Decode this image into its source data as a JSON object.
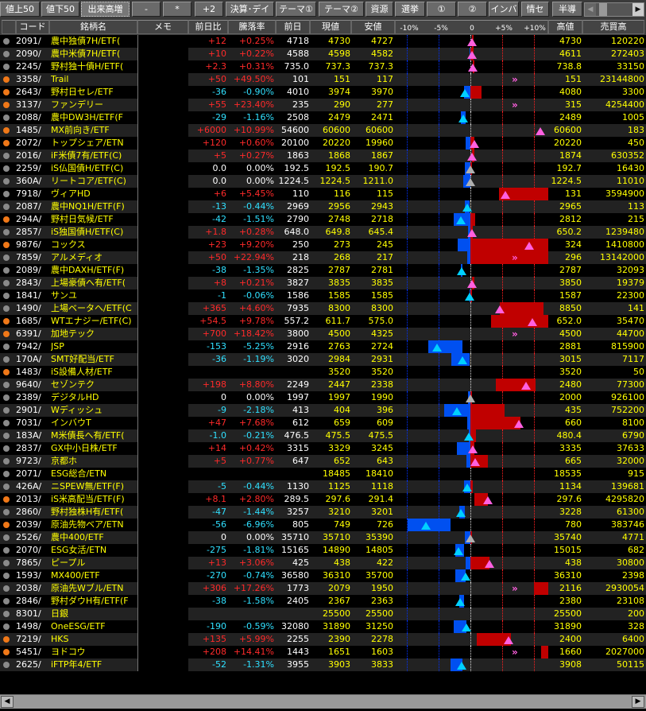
{
  "toolbar": {
    "buttons": [
      "値上50",
      "値下50",
      "出来高増",
      "-",
      "*",
      "+2",
      "決算･デイ",
      "テーマ①",
      "テーマ②",
      "資源",
      "選挙",
      "①",
      "②",
      "インバ",
      "情セ",
      "半導"
    ],
    "active": "出来高増"
  },
  "header": {
    "code": "コード",
    "name": "銘柄名",
    "memo": "メモ",
    "change": "前日比",
    "pct": "騰落率",
    "prev": "前日",
    "current": "現値",
    "low": "安値",
    "high": "高値",
    "volume": "売買高",
    "axis": [
      "-10%",
      "-5%",
      "0",
      "+5%",
      "+10%"
    ]
  },
  "colors": {
    "up_bar": "#c00000",
    "down_bar": "#0050f0",
    "up_marker": "#ff60e0",
    "down_marker": "#00d0ff",
    "flat_marker": "#b0b0b0",
    "dot_orange": "#f07818",
    "dot_gray": "#8a8a8a"
  },
  "rows": [
    {
      "code": "2091/",
      "name": "農中独債7H/ETF(",
      "change": "+12",
      "pct": "+0.25%",
      "prev": "4718",
      "current": "4730",
      "low": "4727",
      "high": "4730",
      "volume": "120220",
      "dot": "gray"
    },
    {
      "code": "2090/",
      "name": "農中米債7H/ETF(",
      "change": "+10",
      "pct": "+0.22%",
      "prev": "4588",
      "current": "4598",
      "low": "4582",
      "high": "4611",
      "volume": "272403",
      "dot": "gray"
    },
    {
      "code": "2245/",
      "name": "野村独十債H/ETF(",
      "change": "+2.3",
      "pct": "+0.31%",
      "prev": "735.0",
      "current": "737.3",
      "low": "737.3",
      "high": "738.8",
      "volume": "33150",
      "dot": "gray"
    },
    {
      "code": "3358/",
      "name": "Trail",
      "change": "+50",
      "pct": "+49.50%",
      "prev": "101",
      "current": "151",
      "low": "117",
      "high": "151",
      "volume": "23144800",
      "dot": "orange"
    },
    {
      "code": "2643/",
      "name": "野村日セレ/ETF",
      "change": "-36",
      "pct": "-0.90%",
      "prev": "4010",
      "current": "3974",
      "low": "3970",
      "high": "4080",
      "volume": "3300",
      "dot": "orange"
    },
    {
      "code": "3137/",
      "name": "ファンデリー",
      "change": "+55",
      "pct": "+23.40%",
      "prev": "235",
      "current": "290",
      "low": "277",
      "high": "315",
      "volume": "4254400",
      "dot": "orange"
    },
    {
      "code": "2088/",
      "name": "農中DW3H/ETF(F",
      "change": "-29",
      "pct": "-1.16%",
      "prev": "2508",
      "current": "2479",
      "low": "2471",
      "high": "2489",
      "volume": "1005",
      "dot": "gray"
    },
    {
      "code": "1485/",
      "name": "MX前向き/ETF",
      "change": "+6000",
      "pct": "+10.99%",
      "prev": "54600",
      "current": "60600",
      "low": "60600",
      "high": "60600",
      "volume": "183",
      "dot": "orange"
    },
    {
      "code": "2072/",
      "name": "トップシェア/ETN",
      "change": "+120",
      "pct": "+0.60%",
      "prev": "20100",
      "current": "20220",
      "low": "19960",
      "high": "20220",
      "volume": "450",
      "dot": "orange"
    },
    {
      "code": "2016/",
      "name": "iF米債7有/ETF(C)",
      "change": "+5",
      "pct": "+0.27%",
      "prev": "1863",
      "current": "1868",
      "low": "1867",
      "high": "1874",
      "volume": "630352",
      "dot": "gray"
    },
    {
      "code": "2259/",
      "name": "iS仏国債H/ETF(C)",
      "change": "0.0",
      "pct": "0.00%",
      "prev": "192.5",
      "current": "192.5",
      "low": "190.7",
      "high": "192.7",
      "volume": "16430",
      "dot": "gray"
    },
    {
      "code": "360A/",
      "name": "リートコア/ETF(C)",
      "change": "0.0",
      "pct": "0.00%",
      "prev": "1224.5",
      "current": "1224.5",
      "low": "1211.0",
      "high": "1224.5",
      "volume": "11010",
      "dot": "gray"
    },
    {
      "code": "7918/",
      "name": "ヴィアHD",
      "change": "+6",
      "pct": "+5.45%",
      "prev": "110",
      "current": "116",
      "low": "115",
      "high": "131",
      "volume": "3594900",
      "dot": "gray"
    },
    {
      "code": "2087/",
      "name": "農中NQ1H/ETF(F)",
      "change": "-13",
      "pct": "-0.44%",
      "prev": "2969",
      "current": "2956",
      "low": "2943",
      "high": "2965",
      "volume": "113",
      "dot": "gray"
    },
    {
      "code": "294A/",
      "name": "野村日気候/ETF",
      "change": "-42",
      "pct": "-1.51%",
      "prev": "2790",
      "current": "2748",
      "low": "2718",
      "high": "2812",
      "volume": "215",
      "dot": "orange"
    },
    {
      "code": "2857/",
      "name": "iS独国債H/ETF(C)",
      "change": "+1.8",
      "pct": "+0.28%",
      "prev": "648.0",
      "current": "649.8",
      "low": "645.4",
      "high": "650.2",
      "volume": "1239480",
      "dot": "gray"
    },
    {
      "code": "9876/",
      "name": "コックス",
      "change": "+23",
      "pct": "+9.20%",
      "prev": "250",
      "current": "273",
      "low": "245",
      "high": "324",
      "volume": "1410800",
      "dot": "orange"
    },
    {
      "code": "7859/",
      "name": "アルメディオ",
      "change": "+50",
      "pct": "+22.94%",
      "prev": "218",
      "current": "268",
      "low": "217",
      "high": "296",
      "volume": "13142000",
      "dot": "gray"
    },
    {
      "code": "2089/",
      "name": "農中DAXH/ETF(F)",
      "change": "-38",
      "pct": "-1.35%",
      "prev": "2825",
      "current": "2787",
      "low": "2781",
      "high": "2787",
      "volume": "32093",
      "dot": "gray"
    },
    {
      "code": "2843/",
      "name": "上場豪債へ有/ETF(",
      "change": "+8",
      "pct": "+0.21%",
      "prev": "3827",
      "current": "3835",
      "low": "3835",
      "high": "3850",
      "volume": "19379",
      "dot": "gray"
    },
    {
      "code": "1841/",
      "name": "サンユ",
      "change": "-1",
      "pct": "-0.06%",
      "prev": "1586",
      "current": "1585",
      "low": "1585",
      "high": "1587",
      "volume": "22300",
      "dot": "gray"
    },
    {
      "code": "1490/",
      "name": "上場ベータヘ/ETF(C",
      "change": "+365",
      "pct": "+4.60%",
      "prev": "7935",
      "current": "8300",
      "low": "8300",
      "high": "8850",
      "volume": "141",
      "dot": "gray"
    },
    {
      "code": "1685/",
      "name": "WTエナジー/ETF(C)",
      "change": "+54.5",
      "pct": "+9.78%",
      "prev": "557.2",
      "current": "611.7",
      "low": "575.0",
      "high": "652.0",
      "volume": "35470",
      "dot": "orange"
    },
    {
      "code": "6391/",
      "name": "加地テック",
      "change": "+700",
      "pct": "+18.42%",
      "prev": "3800",
      "current": "4500",
      "low": "4325",
      "high": "4500",
      "volume": "44700",
      "dot": "orange"
    },
    {
      "code": "7942/",
      "name": "JSP",
      "change": "-153",
      "pct": "-5.25%",
      "prev": "2916",
      "current": "2763",
      "low": "2724",
      "high": "2881",
      "volume": "815900",
      "dot": "gray"
    },
    {
      "code": "170A/",
      "name": "SMT好配当/ETF",
      "change": "-36",
      "pct": "-1.19%",
      "prev": "3020",
      "current": "2984",
      "low": "2931",
      "high": "3015",
      "volume": "7117",
      "dot": "gray"
    },
    {
      "code": "1483/",
      "name": "iS設備人材/ETF",
      "change": "",
      "pct": "",
      "prev": "",
      "current": "3520",
      "low": "3520",
      "high": "3520",
      "volume": "50",
      "dot": "orange"
    },
    {
      "code": "9640/",
      "name": "セゾンテク",
      "change": "+198",
      "pct": "+8.80%",
      "prev": "2249",
      "current": "2447",
      "low": "2338",
      "high": "2480",
      "volume": "77300",
      "dot": "gray"
    },
    {
      "code": "2389/",
      "name": "デジタルHD",
      "change": "0",
      "pct": "0.00%",
      "prev": "1997",
      "current": "1997",
      "low": "1990",
      "high": "2000",
      "volume": "926100",
      "dot": "gray"
    },
    {
      "code": "2901/",
      "name": "Wディッシュ",
      "change": "-9",
      "pct": "-2.18%",
      "prev": "413",
      "current": "404",
      "low": "396",
      "high": "435",
      "volume": "752200",
      "dot": "gray"
    },
    {
      "code": "7031/",
      "name": "インバウT",
      "change": "+47",
      "pct": "+7.68%",
      "prev": "612",
      "current": "659",
      "low": "609",
      "high": "660",
      "volume": "8100",
      "dot": "gray"
    },
    {
      "code": "183A/",
      "name": "M米債長へ有/ETF(",
      "change": "-1.0",
      "pct": "-0.21%",
      "prev": "476.5",
      "current": "475.5",
      "low": "475.5",
      "high": "480.4",
      "volume": "6790",
      "dot": "gray"
    },
    {
      "code": "2837/",
      "name": "GX中小日株/ETF",
      "change": "+14",
      "pct": "+0.42%",
      "prev": "3315",
      "current": "3329",
      "low": "3245",
      "high": "3335",
      "volume": "37633",
      "dot": "gray"
    },
    {
      "code": "9723/",
      "name": "京都ホ",
      "change": "+5",
      "pct": "+0.77%",
      "prev": "647",
      "current": "652",
      "low": "643",
      "high": "665",
      "volume": "32000",
      "dot": "gray"
    },
    {
      "code": "2071/",
      "name": "ESG総合/ETN",
      "change": "",
      "pct": "",
      "prev": "",
      "current": "18485",
      "low": "18410",
      "high": "18535",
      "volume": "915",
      "dot": "gray"
    },
    {
      "code": "426A/",
      "name": "ニSPEW無/ETF(F)",
      "change": "-5",
      "pct": "-0.44%",
      "prev": "1130",
      "current": "1125",
      "low": "1118",
      "high": "1134",
      "volume": "139681",
      "dot": "gray"
    },
    {
      "code": "2013/",
      "name": "iS米高配当/ETF(F)",
      "change": "+8.1",
      "pct": "+2.80%",
      "prev": "289.5",
      "current": "297.6",
      "low": "291.4",
      "high": "297.6",
      "volume": "4295820",
      "dot": "orange"
    },
    {
      "code": "2860/",
      "name": "野村独株H有/ETF(",
      "change": "-47",
      "pct": "-1.44%",
      "prev": "3257",
      "current": "3210",
      "low": "3201",
      "high": "3228",
      "volume": "61300",
      "dot": "gray"
    },
    {
      "code": "2039/",
      "name": "原油先物ベア/ETN",
      "change": "-56",
      "pct": "-6.96%",
      "prev": "805",
      "current": "749",
      "low": "726",
      "high": "780",
      "volume": "383746",
      "dot": "orange"
    },
    {
      "code": "2526/",
      "name": "農中400/ETF",
      "change": "0",
      "pct": "0.00%",
      "prev": "35710",
      "current": "35710",
      "low": "35390",
      "high": "35740",
      "volume": "4771",
      "dot": "gray"
    },
    {
      "code": "2070/",
      "name": "ESG女活/ETN",
      "change": "-275",
      "pct": "-1.81%",
      "prev": "15165",
      "current": "14890",
      "low": "14805",
      "high": "15015",
      "volume": "682",
      "dot": "gray"
    },
    {
      "code": "7865/",
      "name": "ピープル",
      "change": "+13",
      "pct": "+3.06%",
      "prev": "425",
      "current": "438",
      "low": "422",
      "high": "438",
      "volume": "30800",
      "dot": "gray"
    },
    {
      "code": "1593/",
      "name": "MX400/ETF",
      "change": "-270",
      "pct": "-0.74%",
      "prev": "36580",
      "current": "36310",
      "low": "35700",
      "high": "36310",
      "volume": "2398",
      "dot": "gray"
    },
    {
      "code": "2038/",
      "name": "原油先Wブル/ETN",
      "change": "+306",
      "pct": "+17.26%",
      "prev": "1773",
      "current": "2079",
      "low": "1950",
      "high": "2116",
      "volume": "2930054",
      "dot": "gray"
    },
    {
      "code": "2846/",
      "name": "野村ダウH有/ETF(F",
      "change": "-38",
      "pct": "-1.58%",
      "prev": "2405",
      "current": "2367",
      "low": "2363",
      "high": "2380",
      "volume": "23108",
      "dot": "gray"
    },
    {
      "code": "8301/",
      "name": "日銀",
      "change": "",
      "pct": "",
      "prev": "",
      "current": "25500",
      "low": "25500",
      "high": "25500",
      "volume": "200",
      "dot": "gray"
    },
    {
      "code": "1498/",
      "name": "OneESG/ETF",
      "change": "-190",
      "pct": "-0.59%",
      "prev": "32080",
      "current": "31890",
      "low": "31250",
      "high": "31890",
      "volume": "328",
      "dot": "gray"
    },
    {
      "code": "7219/",
      "name": "HKS",
      "change": "+135",
      "pct": "+5.99%",
      "prev": "2255",
      "current": "2390",
      "low": "2278",
      "high": "2400",
      "volume": "6400",
      "dot": "orange"
    },
    {
      "code": "5451/",
      "name": "ヨドコウ",
      "change": "+208",
      "pct": "+14.41%",
      "prev": "1443",
      "current": "1651",
      "low": "1603",
      "high": "1660",
      "volume": "2027000",
      "dot": "orange"
    },
    {
      "code": "2625/",
      "name": "iFTP年4/ETF",
      "change": "-52",
      "pct": "-1.31%",
      "prev": "3955",
      "current": "3903",
      "low": "3833",
      "high": "3908",
      "volume": "50115",
      "dot": "gray"
    }
  ]
}
